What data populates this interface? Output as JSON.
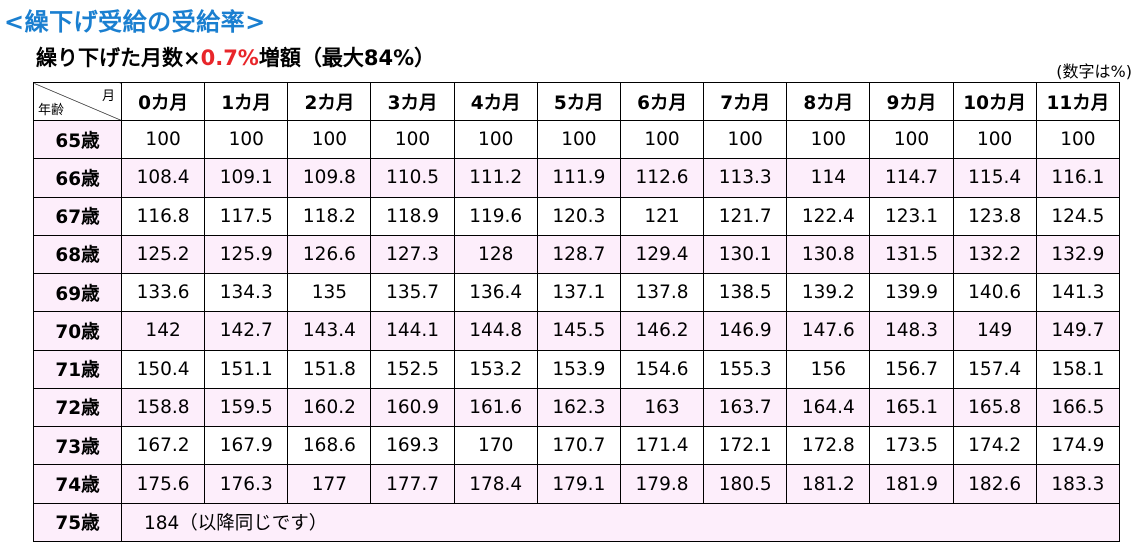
{
  "title": "<繰下げ受給の受給率>",
  "subtitle": {
    "prefix": "繰り下げた月数×",
    "rate": "0.7%",
    "suffix": "増額（最大84%）"
  },
  "unit_note": "(数字は%)",
  "table": {
    "corner_month": "月",
    "corner_age": "年齢",
    "columns": [
      "0カ月",
      "1カ月",
      "2カ月",
      "3カ月",
      "4カ月",
      "5カ月",
      "6カ月",
      "7カ月",
      "8カ月",
      "9カ月",
      "10カ月",
      "11カ月"
    ],
    "rows": [
      {
        "age": "65歳",
        "values": [
          "100",
          "100",
          "100",
          "100",
          "100",
          "100",
          "100",
          "100",
          "100",
          "100",
          "100",
          "100"
        ]
      },
      {
        "age": "66歳",
        "values": [
          "108.4",
          "109.1",
          "109.8",
          "110.5",
          "111.2",
          "111.9",
          "112.6",
          "113.3",
          "114",
          "114.7",
          "115.4",
          "116.1"
        ]
      },
      {
        "age": "67歳",
        "values": [
          "116.8",
          "117.5",
          "118.2",
          "118.9",
          "119.6",
          "120.3",
          "121",
          "121.7",
          "122.4",
          "123.1",
          "123.8",
          "124.5"
        ]
      },
      {
        "age": "68歳",
        "values": [
          "125.2",
          "125.9",
          "126.6",
          "127.3",
          "128",
          "128.7",
          "129.4",
          "130.1",
          "130.8",
          "131.5",
          "132.2",
          "132.9"
        ]
      },
      {
        "age": "69歳",
        "values": [
          "133.6",
          "134.3",
          "135",
          "135.7",
          "136.4",
          "137.1",
          "137.8",
          "138.5",
          "139.2",
          "139.9",
          "140.6",
          "141.3"
        ]
      },
      {
        "age": "70歳",
        "values": [
          "142",
          "142.7",
          "143.4",
          "144.1",
          "144.8",
          "145.5",
          "146.2",
          "146.9",
          "147.6",
          "148.3",
          "149",
          "149.7"
        ]
      },
      {
        "age": "71歳",
        "values": [
          "150.4",
          "151.1",
          "151.8",
          "152.5",
          "153.2",
          "153.9",
          "154.6",
          "155.3",
          "156",
          "156.7",
          "157.4",
          "158.1"
        ]
      },
      {
        "age": "72歳",
        "values": [
          "158.8",
          "159.5",
          "160.2",
          "160.9",
          "161.6",
          "162.3",
          "163",
          "163.7",
          "164.4",
          "165.1",
          "165.8",
          "166.5"
        ]
      },
      {
        "age": "73歳",
        "values": [
          "167.2",
          "167.9",
          "168.6",
          "169.3",
          "170",
          "170.7",
          "171.4",
          "172.1",
          "172.8",
          "173.5",
          "174.2",
          "174.9"
        ]
      },
      {
        "age": "74歳",
        "values": [
          "175.6",
          "176.3",
          "177",
          "177.7",
          "178.4",
          "179.1",
          "179.8",
          "180.5",
          "181.2",
          "181.9",
          "182.6",
          "183.3"
        ]
      }
    ],
    "last_row": {
      "age": "75歳",
      "text": "184（以降同じです）"
    }
  }
}
